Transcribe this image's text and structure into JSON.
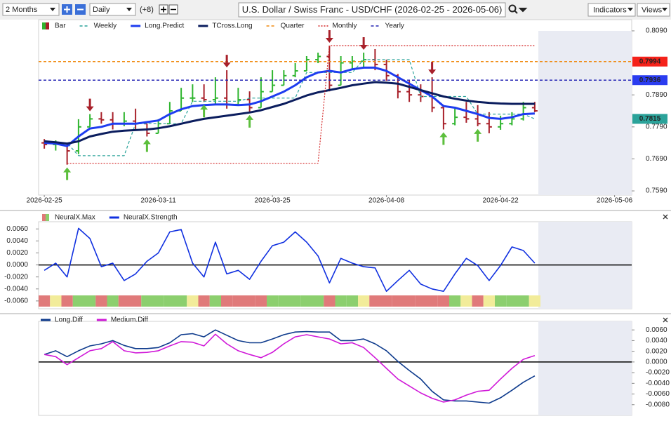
{
  "toolbar": {
    "range": "2 Months",
    "interval": "Daily",
    "offset": "(+8)",
    "title": "U.S. Dollar / Swiss Franc - USD/CHF (2026-02-25 - 2026-05-06)",
    "indicators": "Indicators",
    "views": "Views"
  },
  "chart_data": [
    {
      "type": "ohlc",
      "xlim": [
        -0.5,
        51.5
      ],
      "xticks": [
        {
          "value": 0,
          "label": "2026-02-25"
        },
        {
          "value": 10,
          "label": "2026-03-11"
        },
        {
          "value": 20,
          "label": "2026-03-25"
        },
        {
          "value": 30,
          "label": "2026-04-08"
        },
        {
          "value": 40,
          "label": "2026-04-22"
        },
        {
          "value": 50,
          "label": "2026-05-06"
        }
      ],
      "ylim": [
        0.7577,
        0.8125
      ],
      "yticks": [
        {
          "value": 0.759,
          "label": "0.7590"
        },
        {
          "value": 0.769,
          "label": "0.7690"
        },
        {
          "value": 0.779,
          "label": "0.7790"
        },
        {
          "value": 0.789,
          "label": "0.7890"
        },
        {
          "value": 0.809,
          "label": "0.8090"
        }
      ],
      "bars": {
        "name": "Bar",
        "up_color": "#2fb52f",
        "down_color": "#a8202a",
        "open": [
          0.774,
          0.7735,
          0.7738,
          0.7715,
          0.779,
          0.7815,
          0.7812,
          0.78,
          0.7808,
          0.78,
          0.777,
          0.78,
          0.784,
          0.788,
          0.788,
          0.7875,
          0.788,
          0.786,
          0.7875,
          0.785,
          0.79,
          0.792,
          0.795,
          0.7965,
          0.8,
          0.801,
          0.792,
          0.799,
          0.7995,
          0.8,
          0.7985,
          0.795,
          0.79,
          0.789,
          0.7885,
          0.785,
          0.78,
          0.782,
          0.7815,
          0.78,
          0.779,
          0.78,
          0.7815,
          0.785
        ],
        "high": [
          0.7752,
          0.7748,
          0.7738,
          0.7814,
          0.783,
          0.7836,
          0.7836,
          0.7836,
          0.7847,
          0.78,
          0.7814,
          0.7868,
          0.7912,
          0.7923,
          0.7923,
          0.7945,
          0.7967,
          0.7912,
          0.7901,
          0.7945,
          0.7967,
          0.7967,
          0.7989,
          0.8011,
          0.8022,
          0.8044,
          0.8011,
          0.8011,
          0.8022,
          0.8033,
          0.8,
          0.7955,
          0.7934,
          0.7923,
          0.7945,
          0.7858,
          0.7847,
          0.7868,
          0.7858,
          0.7836,
          0.7825,
          0.7836,
          0.7868,
          0.7868
        ],
        "low": [
          0.7722,
          0.7716,
          0.7672,
          0.7705,
          0.779,
          0.78,
          0.7782,
          0.7792,
          0.7782,
          0.776,
          0.777,
          0.78,
          0.784,
          0.7868,
          0.7868,
          0.7858,
          0.7847,
          0.7858,
          0.7836,
          0.785,
          0.79,
          0.792,
          0.7945,
          0.7965,
          0.7989,
          0.7901,
          0.792,
          0.7967,
          0.7978,
          0.7967,
          0.7934,
          0.7879,
          0.7868,
          0.7868,
          0.7836,
          0.7782,
          0.7795,
          0.7803,
          0.7792,
          0.777,
          0.7781,
          0.7795,
          0.781,
          0.7836
        ],
        "close": [
          0.7735,
          0.7738,
          0.7715,
          0.779,
          0.7815,
          0.7812,
          0.78,
          0.7808,
          0.78,
          0.777,
          0.78,
          0.784,
          0.788,
          0.788,
          0.7875,
          0.788,
          0.786,
          0.7875,
          0.785,
          0.79,
          0.792,
          0.795,
          0.7965,
          0.8,
          0.801,
          0.792,
          0.799,
          0.7995,
          0.8,
          0.7985,
          0.795,
          0.79,
          0.789,
          0.7885,
          0.785,
          0.78,
          0.782,
          0.7815,
          0.78,
          0.779,
          0.78,
          0.7815,
          0.785,
          0.784
        ]
      },
      "series": [
        {
          "name": "Weekly",
          "color": "#2ba39a",
          "dash": "dashed",
          "tag_color": "#2ba39a",
          "values": [
            0.774,
            0.774,
            0.774,
            0.77,
            0.77,
            0.77,
            0.77,
            0.77,
            0.78,
            0.78,
            0.78,
            0.78,
            0.78,
            0.787,
            0.787,
            0.787,
            0.787,
            0.787,
            0.788,
            0.788,
            0.788,
            0.788,
            0.788,
            0.796,
            0.796,
            0.796,
            0.796,
            0.796,
            0.8,
            0.8,
            0.8,
            0.8,
            0.8,
            0.7885,
            0.7885,
            0.7885,
            0.7885,
            0.7885,
            0.783,
            0.783,
            0.783,
            0.783,
            0.783,
            0.7815
          ]
        },
        {
          "name": "Long.Predict",
          "color": "#1d3cf0",
          "values": [
            0.774,
            0.7738,
            0.773,
            0.776,
            0.7785,
            0.779,
            0.78,
            0.78,
            0.78,
            0.7805,
            0.781,
            0.783,
            0.7845,
            0.7855,
            0.7858,
            0.786,
            0.786,
            0.7858,
            0.786,
            0.787,
            0.7885,
            0.79,
            0.792,
            0.7945,
            0.796,
            0.7965,
            0.796,
            0.797,
            0.7975,
            0.7975,
            0.7965,
            0.7945,
            0.7925,
            0.7905,
            0.7885,
            0.7855,
            0.785,
            0.784,
            0.783,
            0.7818,
            0.7815,
            0.782,
            0.783,
            0.7832
          ]
        },
        {
          "name": "TCross.Long",
          "color": "#0b1d5e",
          "values": [
            0.7745,
            0.7742,
            0.7738,
            0.7745,
            0.776,
            0.7768,
            0.7775,
            0.7778,
            0.778,
            0.7782,
            0.7786,
            0.7792,
            0.78,
            0.7808,
            0.7815,
            0.782,
            0.7825,
            0.783,
            0.7835,
            0.7842,
            0.7852,
            0.7862,
            0.7875,
            0.7888,
            0.7898,
            0.7905,
            0.7912,
            0.792,
            0.7925,
            0.793,
            0.7928,
            0.7925,
            0.7915,
            0.7905,
            0.7895,
            0.7885,
            0.7878,
            0.7872,
            0.7868,
            0.7865,
            0.7863,
            0.7862,
            0.7862,
            0.7862
          ]
        },
        {
          "name": "Quarter",
          "color": "#f08a10",
          "dash": "dashed",
          "tag_color": "#f5221a",
          "level": 0.7994
        },
        {
          "name": "Monthly",
          "color": "#d32424",
          "dash": "dotted",
          "values": [
            null,
            null,
            0.7676,
            0.7676,
            0.7676,
            0.7676,
            0.7676,
            0.7676,
            0.7676,
            0.7676,
            0.7676,
            0.7676,
            0.7676,
            0.7676,
            0.7676,
            0.7676,
            0.7676,
            0.7676,
            0.7676,
            0.7676,
            0.7676,
            0.7676,
            0.7676,
            0.7676,
            0.7676,
            0.8044,
            0.8044,
            0.8044,
            0.8044,
            0.8044,
            0.8044,
            0.8044,
            0.8044,
            0.8044,
            0.8044,
            0.8044,
            0.8044,
            0.8044,
            0.8044,
            0.8044,
            0.8044,
            0.8044,
            0.8044,
            0.8044
          ]
        },
        {
          "name": "Yearly",
          "color": "#2424b4",
          "dash": "dashed",
          "tag_color": "#2a3cf0",
          "level": 0.7936
        }
      ],
      "signals": {
        "up": [
          2,
          9,
          14,
          18,
          35,
          38
        ],
        "down": [
          4,
          16,
          25,
          28,
          34
        ],
        "up_color": "#5cbf3c",
        "down_color": "#a8202a"
      }
    },
    {
      "type": "line",
      "xlim": [
        -0.5,
        51.5
      ],
      "ylim": [
        -0.0073,
        0.0072
      ],
      "yticks": [
        {
          "value": 0.006,
          "label": "0.0060"
        },
        {
          "value": 0.004,
          "label": "0.0040"
        },
        {
          "value": 0.002,
          "label": "0.0020"
        },
        {
          "value": 0,
          "label": "0.0000"
        },
        {
          "value": -0.002,
          "label": "-0.0020"
        },
        {
          "value": -0.004,
          "label": "-0.0040"
        },
        {
          "value": -0.006,
          "label": "-0.0060"
        }
      ],
      "axis_side": "left",
      "zero_line": true,
      "series": [
        {
          "name": "NeuralX.Max",
          "colors": [
            "#e07a7a",
            "#f2ec9a",
            "#e07a7a",
            "#8ccf6e",
            "#8ccf6e",
            "#e07a7a",
            "#8ccf6e",
            "#e07a7a",
            "#e07a7a",
            "#8ccf6e",
            "#8ccf6e",
            "#8ccf6e",
            "#8ccf6e",
            "#f2ec9a",
            "#e07a7a",
            "#8ccf6e",
            "#e07a7a",
            "#e07a7a",
            "#e07a7a",
            "#e07a7a",
            "#8ccf6e",
            "#8ccf6e",
            "#8ccf6e",
            "#8ccf6e",
            "#8ccf6e",
            "#e07a7a",
            "#8ccf6e",
            "#8ccf6e",
            "#f2ec9a",
            "#e07a7a",
            "#e07a7a",
            "#e07a7a",
            "#e07a7a",
            "#e07a7a",
            "#e07a7a",
            "#e07a7a",
            "#8ccf6e",
            "#f2ec9a",
            "#e07a7a",
            "#f2ec9a",
            "#8ccf6e",
            "#8ccf6e",
            "#8ccf6e",
            "#f2ec9a"
          ]
        },
        {
          "name": "NeuralX.Strength",
          "color": "#1030e0",
          "values": [
            -0.0009,
            0.0003,
            -0.002,
            0.0061,
            0.0044,
            -0.0003,
            0.0003,
            -0.0026,
            -0.0015,
            0.0006,
            0.002,
            0.0055,
            0.0059,
            0.0003,
            -0.002,
            0.0038,
            -0.0015,
            -0.0009,
            -0.0024,
            0.0006,
            0.0032,
            0.0038,
            0.0055,
            0.0038,
            0.0015,
            -0.003,
            0.0011,
            0.0003,
            -0.0003,
            -0.0005,
            -0.0044,
            -0.0026,
            -0.0009,
            -0.0032,
            -0.004,
            -0.0044,
            -0.0015,
            0.0011,
            -0.0001,
            -0.0026,
            -0.0001,
            0.003,
            0.0024,
            0.0003
          ]
        }
      ]
    },
    {
      "type": "line",
      "xlim": [
        -0.5,
        51.5
      ],
      "ylim": [
        -0.01,
        0.0076
      ],
      "yticks": [
        {
          "value": 0.006,
          "label": "0.0060"
        },
        {
          "value": 0.004,
          "label": "0.0040"
        },
        {
          "value": 0.002,
          "label": "0.0020"
        },
        {
          "value": 0,
          "label": "0.0000"
        },
        {
          "value": -0.002,
          "label": "-0.0020"
        },
        {
          "value": -0.004,
          "label": "-0.0040"
        },
        {
          "value": -0.006,
          "label": "-0.0060"
        },
        {
          "value": -0.008,
          "label": "-0.0080"
        }
      ],
      "axis_side": "right",
      "zero_line": true,
      "series": [
        {
          "name": "Long.Diff",
          "color": "#0d3a8c",
          "values": [
            0.0014,
            0.0021,
            0.001,
            0.0021,
            0.003,
            0.0034,
            0.004,
            0.0031,
            0.0025,
            0.0025,
            0.0027,
            0.0036,
            0.0051,
            0.0053,
            0.0047,
            0.006,
            0.005,
            0.004,
            0.0036,
            0.0036,
            0.0043,
            0.0051,
            0.0056,
            0.0057,
            0.0056,
            0.0056,
            0.004,
            0.004,
            0.0043,
            0.0034,
            0.0021,
            0.0001,
            -0.0016,
            -0.0032,
            -0.0055,
            -0.0071,
            -0.0073,
            -0.0073,
            -0.0075,
            -0.0077,
            -0.0067,
            -0.0053,
            -0.0038,
            -0.0026
          ]
        },
        {
          "name": "Medium.Diff",
          "color": "#d018d8",
          "values": [
            0.0014,
            0.001,
            -0.0005,
            0.0008,
            0.0021,
            0.0025,
            0.0038,
            0.0021,
            0.0017,
            0.0018,
            0.0021,
            0.003,
            0.0038,
            0.0037,
            0.003,
            0.0052,
            0.0034,
            0.0021,
            0.0014,
            0.0008,
            0.0018,
            0.0034,
            0.0047,
            0.0051,
            0.0047,
            0.0043,
            0.0034,
            0.0036,
            0.0027,
            0.0008,
            -0.0012,
            -0.0032,
            -0.0045,
            -0.0058,
            -0.0068,
            -0.0075,
            -0.0071,
            -0.0062,
            -0.0055,
            -0.0053,
            -0.0032,
            -0.0012,
            0.0005,
            0.0012
          ]
        }
      ]
    }
  ]
}
